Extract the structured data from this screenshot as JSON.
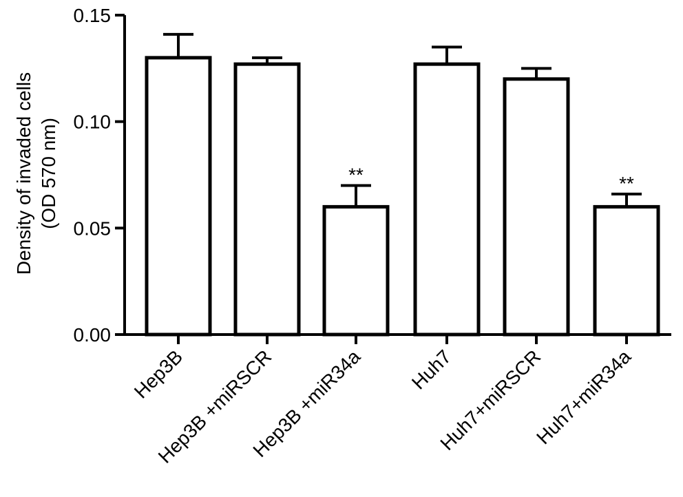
{
  "chart_data": {
    "type": "bar",
    "title": "",
    "xlabel": "",
    "ylabel_lines": [
      "Density of invaded cells",
      "(OD 570 nm)"
    ],
    "ylim": [
      0,
      0.15
    ],
    "yticks": [
      "0.00",
      "0.05",
      "0.10",
      "0.15"
    ],
    "ytick_values": [
      0,
      0.05,
      0.1,
      0.15
    ],
    "categories": [
      "Hep3B",
      "Hep3B +miRSCR",
      "Hep3B +miR34a",
      "Huh7",
      "Huh7+miRSCR",
      "Huh7+miR34a"
    ],
    "values": [
      0.13,
      0.127,
      0.06,
      0.127,
      0.12,
      0.06
    ],
    "errors": [
      0.011,
      0.003,
      0.01,
      0.008,
      0.005,
      0.006
    ],
    "annotations": [
      "",
      "",
      "**",
      "",
      "",
      "**"
    ],
    "colors": {
      "bar_fill": "#ffffff",
      "bar_stroke": "#000000"
    },
    "grid": false,
    "legend": "none"
  }
}
